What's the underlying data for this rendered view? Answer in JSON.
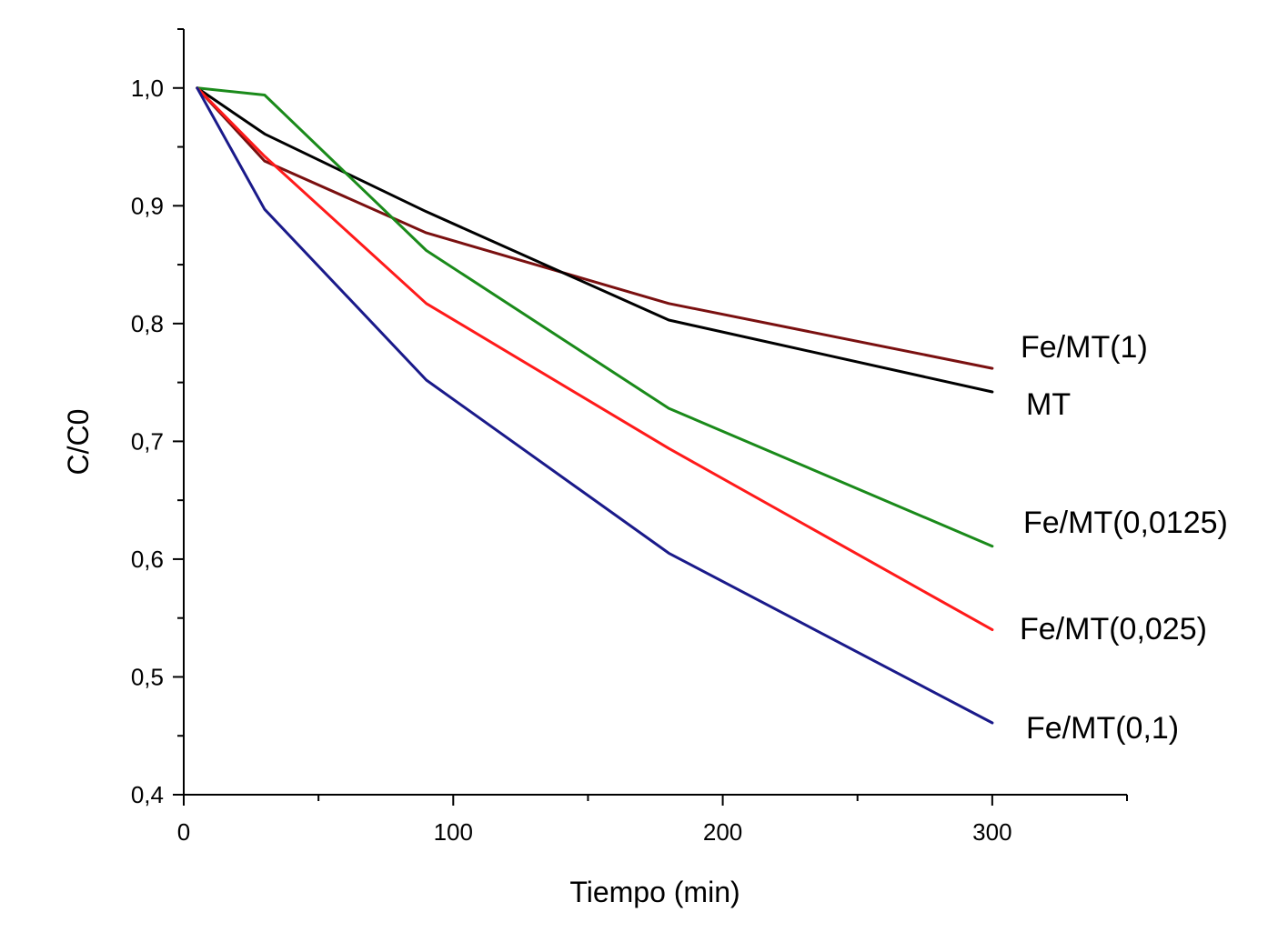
{
  "chart_data": {
    "type": "line",
    "xlabel": "Tiempo (min)",
    "ylabel": "C/C0",
    "xlim": [
      0,
      350
    ],
    "ylim": [
      0.4,
      1.05
    ],
    "x_ticks": [
      {
        "value": 0,
        "label": "0"
      },
      {
        "value": 100,
        "label": "100"
      },
      {
        "value": 200,
        "label": "200"
      },
      {
        "value": 300,
        "label": "300"
      }
    ],
    "x_minor_ticks": [
      50,
      150,
      250,
      350
    ],
    "y_ticks": [
      {
        "value": 0.4,
        "label": "0,4"
      },
      {
        "value": 0.5,
        "label": "0,5"
      },
      {
        "value": 0.6,
        "label": "0,6"
      },
      {
        "value": 0.7,
        "label": "0,7"
      },
      {
        "value": 0.8,
        "label": "0,8"
      },
      {
        "value": 0.9,
        "label": "0,9"
      },
      {
        "value": 1.0,
        "label": "1,0"
      }
    ],
    "y_minor_ticks": [
      0.45,
      0.55,
      0.65,
      0.75,
      0.85,
      0.95,
      1.05
    ],
    "grid": false,
    "legend": "inline labels at right end of lines",
    "series": [
      {
        "name": "Fe/MT(1)",
        "color": "#7a1010",
        "x": [
          5,
          30,
          90,
          180,
          300
        ],
        "y": [
          1.0,
          0.938,
          0.877,
          0.817,
          0.762
        ]
      },
      {
        "name": "MT",
        "color": "#000000",
        "x": [
          5,
          30,
          90,
          180,
          300
        ],
        "y": [
          1.0,
          0.961,
          0.895,
          0.803,
          0.742
        ]
      },
      {
        "name": "Fe/MT(0,0125)",
        "color": "#1a8a1a",
        "x": [
          5,
          30,
          90,
          180,
          300
        ],
        "y": [
          1.0,
          0.994,
          0.862,
          0.728,
          0.611
        ]
      },
      {
        "name": "Fe/MT(0,025)",
        "color": "#ff1a1a",
        "x": [
          5,
          30,
          90,
          180,
          300
        ],
        "y": [
          1.0,
          0.942,
          0.817,
          0.694,
          0.54
        ]
      },
      {
        "name": "Fe/MT(0,1)",
        "color": "#1a1a8a",
        "x": [
          5,
          30,
          90,
          180,
          300
        ],
        "y": [
          1.0,
          0.897,
          0.752,
          0.605,
          0.461
        ]
      }
    ]
  }
}
